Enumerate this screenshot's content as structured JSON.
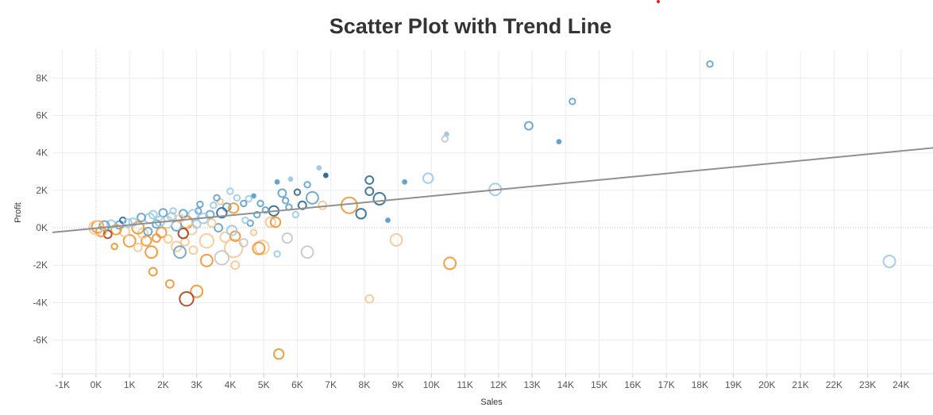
{
  "colors": {
    "trend": "#909090",
    "gridline": "#ececec",
    "zeroline": "#bdbdbd",
    "profit_dark": "#2f6d96",
    "profit_mid": "#5fa3cc",
    "profit_light": "#9ccbe8",
    "neutral": "#c8c8c8",
    "loss_light": "#f7c893",
    "loss_mid": "#f2952e",
    "loss_dark": "#a8431a"
  },
  "chart_data": {
    "type": "scatter",
    "title": "Scatter Plot with Trend Line",
    "xlabel": "Sales",
    "ylabel": "Profit",
    "xlim": [
      -1300,
      24950
    ],
    "ylim": [
      -7800,
      9500
    ],
    "x_ticks": [
      -1000,
      0,
      1000,
      2000,
      3000,
      4000,
      5000,
      6000,
      7000,
      8000,
      9000,
      10000,
      11000,
      12000,
      13000,
      14000,
      15000,
      16000,
      17000,
      18000,
      19000,
      20000,
      21000,
      22000,
      23000,
      24000
    ],
    "x_tick_labels": [
      "-1K",
      "0K",
      "1K",
      "2K",
      "3K",
      "4K",
      "5K",
      "6K",
      "7K",
      "8K",
      "9K",
      "10K",
      "11K",
      "12K",
      "13K",
      "14K",
      "15K",
      "16K",
      "17K",
      "18K",
      "19K",
      "20K",
      "21K",
      "22K",
      "23K",
      "24K"
    ],
    "y_ticks": [
      -6000,
      -4000,
      -2000,
      0,
      2000,
      4000,
      6000,
      8000
    ],
    "y_tick_labels": [
      "-6K",
      "-4K",
      "-2K",
      "0K",
      "2K",
      "4K",
      "6K",
      "8K"
    ],
    "grid": true,
    "trend_line": {
      "slope": 0.172,
      "intercept": -25
    },
    "points": [
      {
        "x": 18300,
        "y": 8750,
        "size": 2,
        "color": "profit_mid"
      },
      {
        "x": 14200,
        "y": 6750,
        "size": 2,
        "color": "profit_mid"
      },
      {
        "x": 12900,
        "y": 5450,
        "size": 3,
        "color": "profit_mid"
      },
      {
        "x": 13800,
        "y": 4600,
        "size": 1,
        "color": "profit_mid"
      },
      {
        "x": 10450,
        "y": 5000,
        "size": 1,
        "color": "profit_light"
      },
      {
        "x": 10400,
        "y": 4750,
        "size": 2,
        "color": "neutral"
      },
      {
        "x": 9900,
        "y": 2650,
        "size": 4,
        "color": "profit_light"
      },
      {
        "x": 11900,
        "y": 2050,
        "size": 5,
        "color": "profit_light"
      },
      {
        "x": 9200,
        "y": 2450,
        "size": 1,
        "color": "profit_mid"
      },
      {
        "x": 23650,
        "y": -1800,
        "size": 5,
        "color": "profit_light"
      },
      {
        "x": 10550,
        "y": -1900,
        "size": 5,
        "color": "loss_mid"
      },
      {
        "x": 8150,
        "y": -3800,
        "size": 3,
        "color": "loss_light"
      },
      {
        "x": 5450,
        "y": -6750,
        "size": 4,
        "color": "loss_mid"
      },
      {
        "x": 8950,
        "y": -650,
        "size": 5,
        "color": "loss_light"
      },
      {
        "x": 7550,
        "y": 1200,
        "size": 7,
        "color": "loss_mid"
      },
      {
        "x": 8450,
        "y": 1550,
        "size": 5,
        "color": "profit_dark"
      },
      {
        "x": 8150,
        "y": 1950,
        "size": 3,
        "color": "profit_dark"
      },
      {
        "x": 8150,
        "y": 2550,
        "size": 3,
        "color": "profit_dark"
      },
      {
        "x": 7900,
        "y": 750,
        "size": 4,
        "color": "profit_dark"
      },
      {
        "x": 8700,
        "y": 400,
        "size": 1,
        "color": "profit_mid"
      },
      {
        "x": 6300,
        "y": -1300,
        "size": 5,
        "color": "neutral"
      },
      {
        "x": 5700,
        "y": -550,
        "size": 4,
        "color": "neutral"
      },
      {
        "x": 6750,
        "y": 1200,
        "size": 3,
        "color": "loss_light"
      },
      {
        "x": 6450,
        "y": 1600,
        "size": 5,
        "color": "profit_mid"
      },
      {
        "x": 6850,
        "y": 2800,
        "size": 1,
        "color": "profit_dark"
      },
      {
        "x": 6650,
        "y": 3200,
        "size": 1,
        "color": "profit_light"
      },
      {
        "x": 5800,
        "y": 2600,
        "size": 1,
        "color": "profit_light"
      },
      {
        "x": 6300,
        "y": 2300,
        "size": 2,
        "color": "profit_mid"
      },
      {
        "x": 5400,
        "y": 2450,
        "size": 1,
        "color": "profit_mid"
      },
      {
        "x": 5550,
        "y": 1850,
        "size": 3,
        "color": "profit_mid"
      },
      {
        "x": 6000,
        "y": 1900,
        "size": 2,
        "color": "profit_dark"
      },
      {
        "x": 6150,
        "y": 1200,
        "size": 3,
        "color": "profit_dark"
      },
      {
        "x": 5750,
        "y": 1100,
        "size": 2,
        "color": "profit_mid"
      },
      {
        "x": 5950,
        "y": 700,
        "size": 2,
        "color": "profit_light"
      },
      {
        "x": 5300,
        "y": 900,
        "size": 4,
        "color": "profit_dark"
      },
      {
        "x": 5200,
        "y": 300,
        "size": 4,
        "color": "loss_light"
      },
      {
        "x": 5350,
        "y": 300,
        "size": 4,
        "color": "loss_mid"
      },
      {
        "x": 5400,
        "y": -1400,
        "size": 2,
        "color": "profit_light"
      },
      {
        "x": 4950,
        "y": -1050,
        "size": 6,
        "color": "loss_light"
      },
      {
        "x": 4850,
        "y": -1100,
        "size": 5,
        "color": "loss_mid"
      },
      {
        "x": 4150,
        "y": -2000,
        "size": 3,
        "color": "loss_light"
      },
      {
        "x": 4100,
        "y": -1100,
        "size": 8,
        "color": "loss_light"
      },
      {
        "x": 3750,
        "y": -1600,
        "size": 6,
        "color": "neutral"
      },
      {
        "x": 3850,
        "y": -500,
        "size": 4,
        "color": "loss_light"
      },
      {
        "x": 4150,
        "y": -450,
        "size": 4,
        "color": "loss_mid"
      },
      {
        "x": 3300,
        "y": -1750,
        "size": 5,
        "color": "loss_mid"
      },
      {
        "x": 3000,
        "y": -3400,
        "size": 5,
        "color": "loss_mid"
      },
      {
        "x": 2700,
        "y": -3800,
        "size": 6,
        "color": "loss_dark"
      },
      {
        "x": 2200,
        "y": -3000,
        "size": 3,
        "color": "loss_mid"
      },
      {
        "x": 1700,
        "y": -2350,
        "size": 3,
        "color": "loss_mid"
      },
      {
        "x": 1650,
        "y": -1300,
        "size": 5,
        "color": "loss_mid"
      },
      {
        "x": 2400,
        "y": -1000,
        "size": 4,
        "color": "loss_light"
      },
      {
        "x": 2650,
        "y": -750,
        "size": 3,
        "color": "loss_light"
      },
      {
        "x": 2900,
        "y": -1200,
        "size": 3,
        "color": "loss_light"
      },
      {
        "x": 2500,
        "y": -1300,
        "size": 5,
        "color": "profit_mid"
      },
      {
        "x": 3300,
        "y": -700,
        "size": 6,
        "color": "loss_light"
      },
      {
        "x": 3650,
        "y": 0,
        "size": 3,
        "color": "profit_mid"
      },
      {
        "x": 4050,
        "y": -150,
        "size": 4,
        "color": "profit_light"
      },
      {
        "x": 4400,
        "y": -800,
        "size": 3,
        "color": "neutral"
      },
      {
        "x": 4600,
        "y": 250,
        "size": 2,
        "color": "profit_mid"
      },
      {
        "x": 4800,
        "y": 700,
        "size": 2,
        "color": "profit_mid"
      },
      {
        "x": 5050,
        "y": 950,
        "size": 2,
        "color": "profit_mid"
      },
      {
        "x": 4900,
        "y": 1300,
        "size": 2,
        "color": "profit_mid"
      },
      {
        "x": 4700,
        "y": 1700,
        "size": 1,
        "color": "profit_mid"
      },
      {
        "x": 4550,
        "y": 1550,
        "size": 2,
        "color": "profit_light"
      },
      {
        "x": 4400,
        "y": 1300,
        "size": 2,
        "color": "profit_mid"
      },
      {
        "x": 4200,
        "y": 1600,
        "size": 2,
        "color": "profit_light"
      },
      {
        "x": 4000,
        "y": 1950,
        "size": 2,
        "color": "profit_light"
      },
      {
        "x": 3900,
        "y": 1100,
        "size": 3,
        "color": "profit_mid"
      },
      {
        "x": 4100,
        "y": 1050,
        "size": 4,
        "color": "loss_mid"
      },
      {
        "x": 3700,
        "y": 1400,
        "size": 2,
        "color": "loss_light"
      },
      {
        "x": 3600,
        "y": 1600,
        "size": 2,
        "color": "profit_mid"
      },
      {
        "x": 3750,
        "y": 800,
        "size": 4,
        "color": "profit_dark"
      },
      {
        "x": 3400,
        "y": 700,
        "size": 3,
        "color": "profit_mid"
      },
      {
        "x": 3200,
        "y": 500,
        "size": 4,
        "color": "profit_light"
      },
      {
        "x": 3050,
        "y": 900,
        "size": 2,
        "color": "profit_mid"
      },
      {
        "x": 2900,
        "y": 700,
        "size": 4,
        "color": "profit_light"
      },
      {
        "x": 2700,
        "y": 300,
        "size": 5,
        "color": "loss_mid"
      },
      {
        "x": 2850,
        "y": -100,
        "size": 4,
        "color": "loss_light"
      },
      {
        "x": 2600,
        "y": -300,
        "size": 4,
        "color": "loss_dark"
      },
      {
        "x": 2400,
        "y": 100,
        "size": 4,
        "color": "profit_mid"
      },
      {
        "x": 2250,
        "y": 600,
        "size": 3,
        "color": "profit_light"
      },
      {
        "x": 2100,
        "y": 300,
        "size": 5,
        "color": "neutral"
      },
      {
        "x": 1950,
        "y": -250,
        "size": 4,
        "color": "loss_mid"
      },
      {
        "x": 1800,
        "y": 200,
        "size": 3,
        "color": "profit_mid"
      },
      {
        "x": 1600,
        "y": 500,
        "size": 4,
        "color": "profit_light"
      },
      {
        "x": 1500,
        "y": -700,
        "size": 4,
        "color": "loss_mid"
      },
      {
        "x": 1400,
        "y": -300,
        "size": 4,
        "color": "loss_light"
      },
      {
        "x": 1250,
        "y": 0,
        "size": 5,
        "color": "loss_mid"
      },
      {
        "x": 1100,
        "y": 300,
        "size": 3,
        "color": "profit_light"
      },
      {
        "x": 1000,
        "y": -700,
        "size": 5,
        "color": "loss_mid"
      },
      {
        "x": 850,
        "y": -200,
        "size": 4,
        "color": "loss_light"
      },
      {
        "x": 700,
        "y": 150,
        "size": 3,
        "color": "profit_mid"
      },
      {
        "x": 600,
        "y": -100,
        "size": 4,
        "color": "loss_mid"
      },
      {
        "x": 450,
        "y": 200,
        "size": 3,
        "color": "profit_light"
      },
      {
        "x": 350,
        "y": -350,
        "size": 3,
        "color": "loss_dark"
      },
      {
        "x": 250,
        "y": 100,
        "size": 4,
        "color": "profit_mid"
      },
      {
        "x": 150,
        "y": -200,
        "size": 4,
        "color": "loss_mid"
      },
      {
        "x": 50,
        "y": 50,
        "size": 5,
        "color": "loss_mid"
      },
      {
        "x": 0,
        "y": 0,
        "size": 6,
        "color": "loss_light"
      },
      {
        "x": 800,
        "y": 400,
        "size": 2,
        "color": "profit_dark"
      },
      {
        "x": 1350,
        "y": 550,
        "size": 3,
        "color": "profit_mid"
      },
      {
        "x": 1700,
        "y": 700,
        "size": 3,
        "color": "profit_light"
      },
      {
        "x": 2000,
        "y": 800,
        "size": 3,
        "color": "profit_mid"
      },
      {
        "x": 2300,
        "y": 900,
        "size": 2,
        "color": "profit_light"
      },
      {
        "x": 2600,
        "y": 750,
        "size": 3,
        "color": "profit_mid"
      },
      {
        "x": 3100,
        "y": 1250,
        "size": 2,
        "color": "profit_mid"
      },
      {
        "x": 3500,
        "y": 1200,
        "size": 2,
        "color": "profit_light"
      },
      {
        "x": 1900,
        "y": 350,
        "size": 4,
        "color": "profit_light"
      },
      {
        "x": 2150,
        "y": -600,
        "size": 3,
        "color": "loss_light"
      },
      {
        "x": 1250,
        "y": -1050,
        "size": 3,
        "color": "loss_light"
      },
      {
        "x": 550,
        "y": -1000,
        "size": 2,
        "color": "loss_mid"
      },
      {
        "x": 3450,
        "y": 250,
        "size": 3,
        "color": "loss_light"
      },
      {
        "x": 3000,
        "y": 200,
        "size": 3,
        "color": "profit_light"
      },
      {
        "x": 4450,
        "y": 400,
        "size": 2,
        "color": "profit_light"
      },
      {
        "x": 5650,
        "y": 1450,
        "size": 2,
        "color": "profit_mid"
      },
      {
        "x": 4700,
        "y": -250,
        "size": 2,
        "color": "loss_light"
      },
      {
        "x": 2500,
        "y": 500,
        "size": 3,
        "color": "loss_light"
      },
      {
        "x": 1550,
        "y": -200,
        "size": 3,
        "color": "profit_mid"
      },
      {
        "x": 950,
        "y": 250,
        "size": 3,
        "color": "profit_light"
      },
      {
        "x": 1800,
        "y": -550,
        "size": 3,
        "color": "loss_mid"
      }
    ]
  }
}
